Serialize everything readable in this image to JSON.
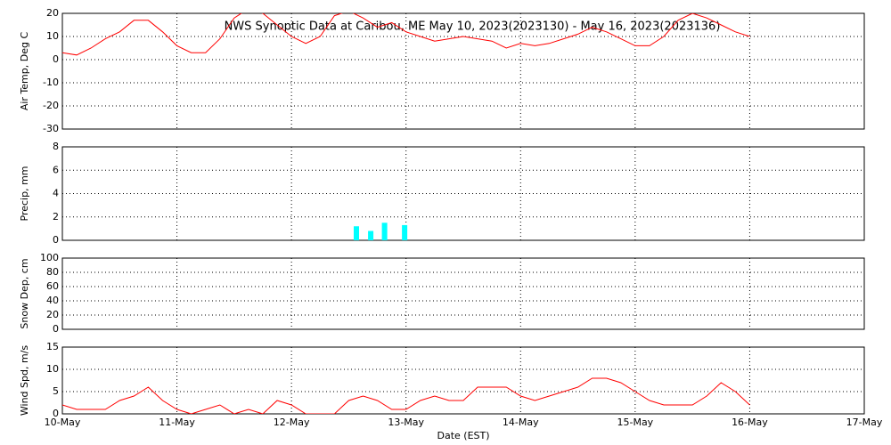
{
  "chart_data": [
    {
      "type": "line",
      "title": "NWS Synoptic Data at Caribou, ME   May 10, 2023(2023130) - May 16, 2023(2023136)",
      "y_label": "Air Temp, Deg C",
      "ylim": [
        -30,
        20
      ],
      "yticks": [
        -30,
        -20,
        -10,
        0,
        10,
        20
      ],
      "grid": true,
      "x": [
        0,
        3,
        6,
        9,
        12,
        15,
        18,
        21,
        24,
        27,
        30,
        33,
        36,
        39,
        42,
        45,
        48,
        51,
        54,
        57,
        60,
        63,
        66,
        69,
        72,
        75,
        78,
        81,
        84,
        87,
        90,
        93,
        96,
        99,
        102,
        105,
        108,
        111,
        114,
        117,
        120,
        123,
        126,
        129,
        132,
        135,
        138,
        141,
        144
      ],
      "color": "#ff0000",
      "values": [
        3,
        2,
        5,
        9,
        12,
        17,
        17,
        12,
        6,
        3,
        3,
        9,
        18,
        22,
        20,
        15,
        10,
        7,
        10,
        19,
        21,
        18,
        14,
        16,
        12,
        10,
        8,
        9,
        10,
        9,
        8,
        5,
        7,
        6,
        7,
        9,
        11,
        14,
        12,
        9,
        6,
        6,
        10,
        17,
        20,
        18,
        15,
        12,
        10
      ]
    },
    {
      "type": "bar",
      "y_label": "Precip, mm",
      "ylim": [
        0,
        8
      ],
      "yticks": [
        0,
        2,
        4,
        6,
        8
      ],
      "grid": true,
      "x": [
        61.6,
        64.6,
        67.5,
        71.7
      ],
      "color": "#00ffff",
      "values": [
        1.2,
        0.8,
        1.5,
        1.3
      ]
    },
    {
      "type": "line",
      "y_label": "Snow Dep, cm",
      "ylim": [
        0,
        100
      ],
      "yticks": [
        0,
        20,
        40,
        60,
        80,
        100
      ],
      "grid": true
    },
    {
      "type": "line",
      "y_label": "Wind Spd, m/s",
      "ylim": [
        0,
        15
      ],
      "yticks": [
        0,
        5,
        10,
        15
      ],
      "grid": true,
      "x": [
        0,
        3,
        6,
        9,
        12,
        15,
        18,
        21,
        24,
        27,
        30,
        33,
        36,
        39,
        42,
        45,
        48,
        51,
        54,
        57,
        60,
        63,
        66,
        69,
        72,
        75,
        78,
        81,
        84,
        87,
        90,
        93,
        96,
        99,
        102,
        105,
        108,
        111,
        114,
        117,
        120,
        123,
        126,
        129,
        132,
        135,
        138,
        141,
        144
      ],
      "color": "#ff0000",
      "values": [
        2,
        1,
        1,
        1,
        3,
        4,
        6,
        3,
        1,
        0,
        1,
        2,
        0,
        1,
        0,
        3,
        2,
        0,
        0,
        0,
        3,
        4,
        3,
        1,
        1,
        3,
        4,
        3,
        3,
        6,
        6,
        6,
        4,
        3,
        4,
        5,
        6,
        8,
        8,
        7,
        5,
        3,
        2,
        2,
        2,
        4,
        7,
        5,
        2
      ],
      "x_label": "Date (EST)",
      "xlim": [
        0,
        168
      ],
      "xticks": [
        {
          "value": 0,
          "label": "10-May"
        },
        {
          "value": 24,
          "label": "11-May"
        },
        {
          "value": 48,
          "label": "12-May"
        },
        {
          "value": 72,
          "label": "13-May"
        },
        {
          "value": 96,
          "label": "14-May"
        },
        {
          "value": 120,
          "label": "15-May"
        },
        {
          "value": 144,
          "label": "16-May"
        },
        {
          "value": 168,
          "label": "17-May"
        }
      ]
    }
  ]
}
